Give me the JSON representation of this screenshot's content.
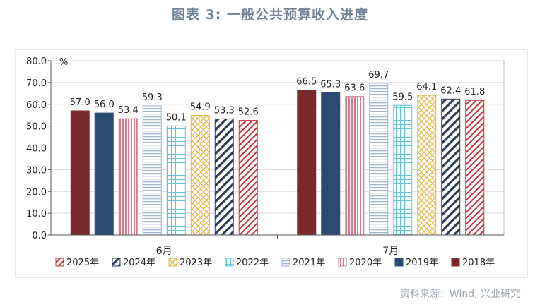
{
  "title": "图表 3:  一般公共预算收入进度",
  "source": "资料来源：Wind, 兴业研究",
  "chart_data": {
    "type": "bar",
    "unit": "%",
    "categories": [
      "6月",
      "7月"
    ],
    "ylim": [
      0,
      80
    ],
    "yticks": [
      "0.0",
      "10.0",
      "20.0",
      "30.0",
      "40.0",
      "50.0",
      "60.0",
      "70.0",
      "80.0"
    ],
    "grid": true,
    "legend_position": "bottom",
    "series": [
      {
        "name": "2018年",
        "values": [
          57.0,
          66.5
        ],
        "labels": [
          "57.0",
          "66.5"
        ],
        "color": "#7b2a2c",
        "pattern": "solid"
      },
      {
        "name": "2019年",
        "values": [
          56.0,
          65.3
        ],
        "labels": [
          "56.0",
          "65.3"
        ],
        "color": "#2c4b72",
        "pattern": "solid"
      },
      {
        "name": "2020年",
        "values": [
          53.4,
          63.6
        ],
        "labels": [
          "53.4",
          "63.6"
        ],
        "color": "#d9788a",
        "pattern": "vertical"
      },
      {
        "name": "2021年",
        "values": [
          59.3,
          69.7
        ],
        "labels": [
          "59.3",
          "69.7"
        ],
        "color": "#9db6cf",
        "pattern": "horizontal"
      },
      {
        "name": "2022年",
        "values": [
          50.1,
          59.5
        ],
        "labels": [
          "50.1",
          "59.5"
        ],
        "color": "#62c4d6",
        "pattern": "grid"
      },
      {
        "name": "2023年",
        "values": [
          54.9,
          64.1
        ],
        "labels": [
          "54.9",
          "64.1"
        ],
        "color": "#e2b84a",
        "pattern": "diamond"
      },
      {
        "name": "2024年",
        "values": [
          53.3,
          62.4
        ],
        "labels": [
          "53.3",
          "62.4"
        ],
        "color": "#2c3e57",
        "pattern": "wide-diag"
      },
      {
        "name": "2025年",
        "values": [
          52.6,
          61.8
        ],
        "labels": [
          "52.6",
          "61.8"
        ],
        "color": "#c8333f",
        "pattern": "diag"
      }
    ],
    "legend_order": [
      "2025年",
      "2024年",
      "2023年",
      "2022年",
      "2021年",
      "2020年",
      "2019年",
      "2018年"
    ]
  }
}
